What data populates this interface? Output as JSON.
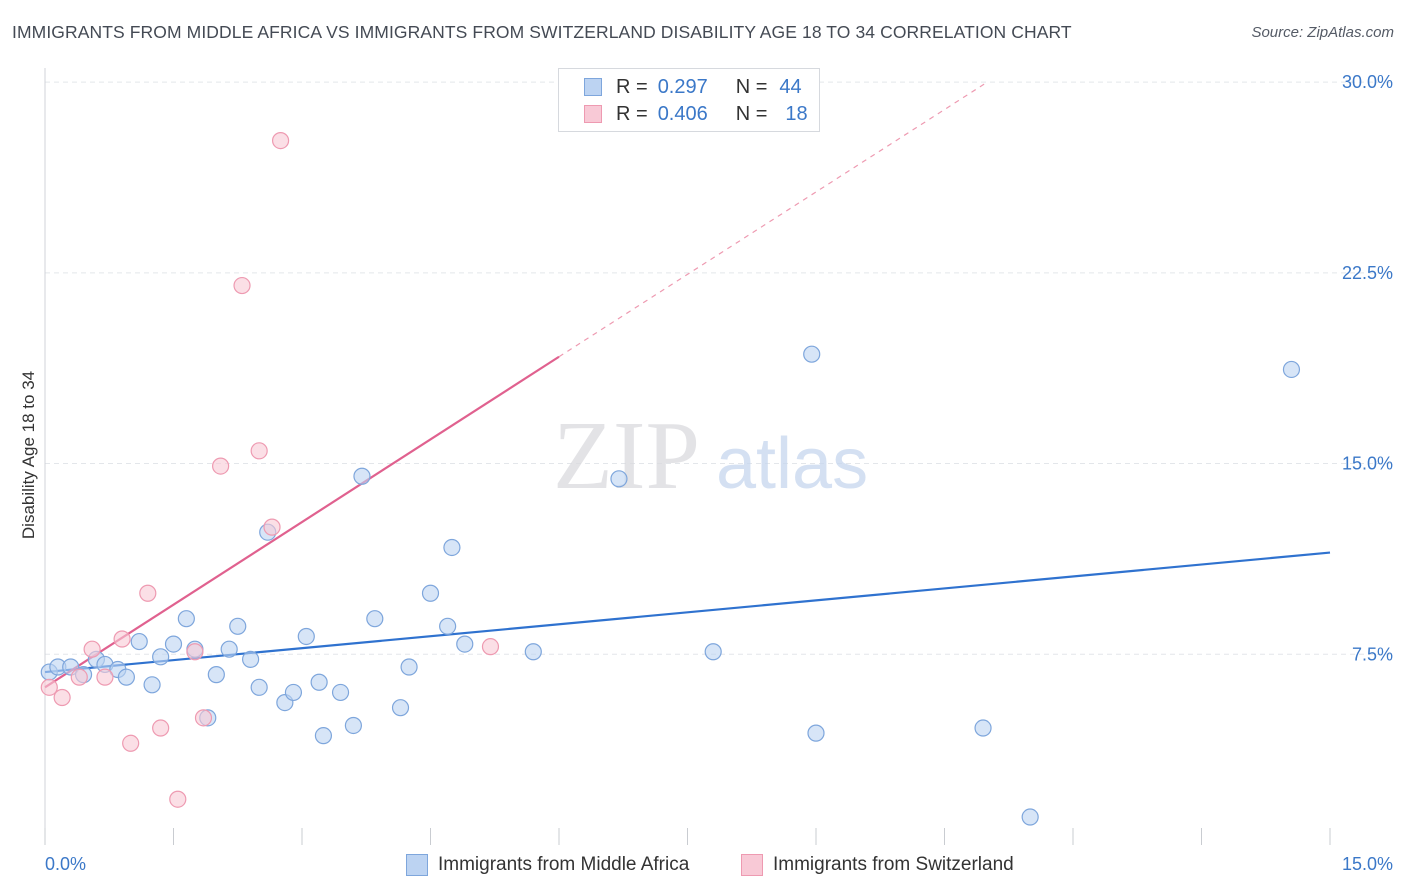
{
  "title": "IMMIGRANTS FROM MIDDLE AFRICA VS IMMIGRANTS FROM SWITZERLAND DISABILITY AGE 18 TO 34 CORRELATION CHART",
  "source": "Source: ZipAtlas.com",
  "watermark": {
    "zip": "ZIP",
    "atlas": "atlas"
  },
  "legend": {
    "r_label": "R =",
    "n_label": "N =",
    "rows": [
      {
        "r": "0.297",
        "n": "44"
      },
      {
        "r": "0.406",
        "n": "18"
      }
    ]
  },
  "colors": {
    "blue_fill": "#bcd3f2",
    "blue_stroke": "#7ea6dc",
    "blue_line": "#2f72cf",
    "pink_fill": "#f8c9d6",
    "pink_stroke": "#ee9ab1",
    "pink_line": "#e0618f",
    "tick_label": "#3b78c8",
    "grid": "#e3e6ea"
  },
  "chart_data": {
    "type": "scatter",
    "title": "IMMIGRANTS FROM MIDDLE AFRICA VS IMMIGRANTS FROM SWITZERLAND DISABILITY AGE 18 TO 34 CORRELATION CHART",
    "xlabel": "",
    "ylabel": "Disability Age 18 to 34",
    "xlim": [
      0,
      15
    ],
    "ylim": [
      0,
      30
    ],
    "x_tick_labels": [
      "0.0%",
      "15.0%"
    ],
    "y_ticks": [
      7.5,
      15.0,
      22.5,
      30.0
    ],
    "y_tick_labels": [
      "7.5%",
      "15.0%",
      "22.5%",
      "30.0%"
    ],
    "grid": true,
    "series": [
      {
        "name": "Immigrants from Middle Africa",
        "color": "blue",
        "points": [
          [
            0.05,
            6.8
          ],
          [
            0.15,
            7.0
          ],
          [
            0.3,
            7.0
          ],
          [
            0.45,
            6.7
          ],
          [
            0.6,
            7.3
          ],
          [
            0.7,
            7.1
          ],
          [
            0.85,
            6.9
          ],
          [
            0.95,
            6.6
          ],
          [
            1.1,
            8.0
          ],
          [
            1.25,
            6.3
          ],
          [
            1.35,
            7.4
          ],
          [
            1.5,
            7.9
          ],
          [
            1.65,
            8.9
          ],
          [
            1.75,
            7.7
          ],
          [
            1.9,
            5.0
          ],
          [
            2.0,
            6.7
          ],
          [
            2.15,
            7.7
          ],
          [
            2.25,
            8.6
          ],
          [
            2.4,
            7.3
          ],
          [
            2.5,
            6.2
          ],
          [
            2.6,
            12.3
          ],
          [
            2.8,
            5.6
          ],
          [
            2.9,
            6.0
          ],
          [
            3.05,
            8.2
          ],
          [
            3.2,
            6.4
          ],
          [
            3.25,
            4.3
          ],
          [
            3.45,
            6.0
          ],
          [
            3.6,
            4.7
          ],
          [
            3.7,
            14.5
          ],
          [
            3.85,
            8.9
          ],
          [
            4.15,
            5.4
          ],
          [
            4.25,
            7.0
          ],
          [
            4.5,
            9.9
          ],
          [
            4.7,
            8.6
          ],
          [
            4.75,
            11.7
          ],
          [
            4.9,
            7.9
          ],
          [
            5.7,
            7.6
          ],
          [
            6.7,
            14.4
          ],
          [
            7.8,
            7.6
          ],
          [
            8.95,
            19.3
          ],
          [
            9.0,
            4.4
          ],
          [
            10.95,
            4.6
          ],
          [
            11.5,
            1.1
          ],
          [
            14.55,
            18.7
          ]
        ],
        "trend": {
          "x": [
            0,
            15
          ],
          "y": [
            6.8,
            11.5
          ]
        }
      },
      {
        "name": "Immigrants from Switzerland",
        "color": "pink",
        "points": [
          [
            0.05,
            6.2
          ],
          [
            0.2,
            5.8
          ],
          [
            0.4,
            6.6
          ],
          [
            0.55,
            7.7
          ],
          [
            0.7,
            6.6
          ],
          [
            0.9,
            8.1
          ],
          [
            1.0,
            4.0
          ],
          [
            1.2,
            9.9
          ],
          [
            1.35,
            4.6
          ],
          [
            1.55,
            1.8
          ],
          [
            1.75,
            7.6
          ],
          [
            1.85,
            5.0
          ],
          [
            2.05,
            14.9
          ],
          [
            2.3,
            22.0
          ],
          [
            2.5,
            15.5
          ],
          [
            2.65,
            12.5
          ],
          [
            2.75,
            27.7
          ],
          [
            5.2,
            7.8
          ]
        ],
        "trend": {
          "x": [
            0,
            6.0
          ],
          "y": [
            6.2,
            19.2
          ]
        },
        "trend_extension": {
          "x": [
            6.0,
            11.0
          ],
          "y": [
            19.2,
            30.0
          ]
        }
      }
    ]
  },
  "bottom_legend": [
    "Immigrants from Middle Africa",
    "Immigrants from Switzerland"
  ]
}
